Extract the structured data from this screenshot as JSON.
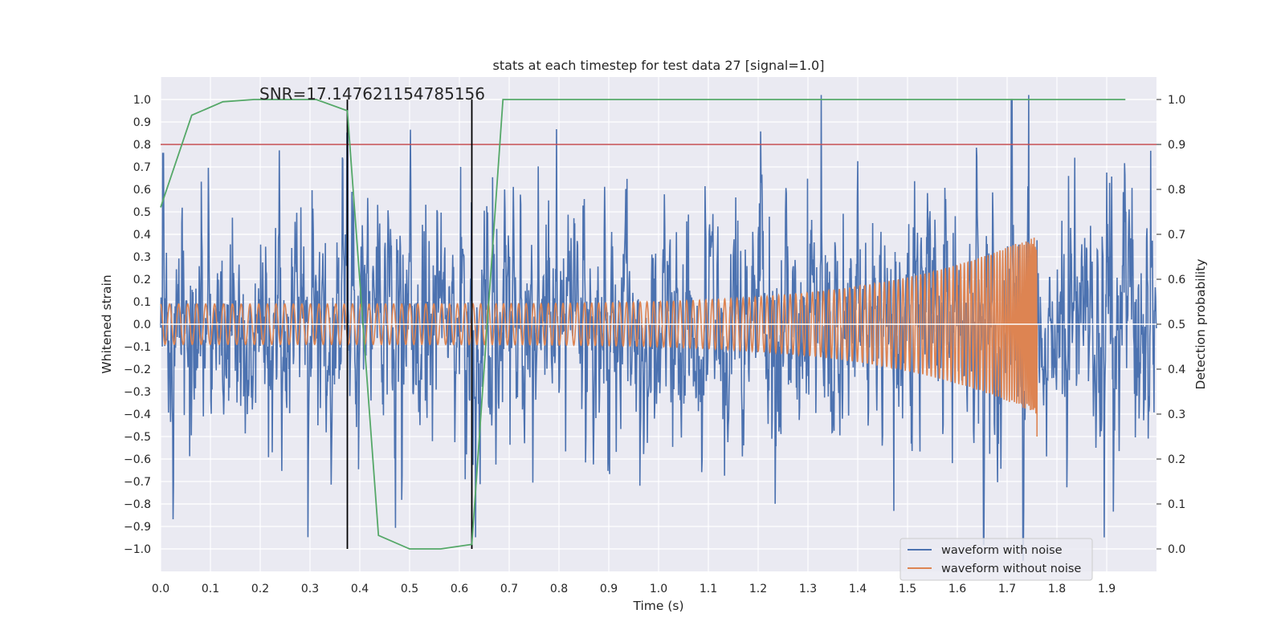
{
  "chart_data": {
    "type": "line",
    "title": "stats at each timestep for test data 27 [signal=1.0]",
    "annotation": "SNR=17.147621154785156",
    "xlabel": "Time (s)",
    "ylabel_left": "Whitened strain",
    "ylabel_right": "Detection probability",
    "xlim": [
      0.0,
      2.0
    ],
    "ylim_left": [
      -1.1,
      1.1
    ],
    "ylim_right": [
      -0.05,
      1.05
    ],
    "x_ticks": [
      "0.0",
      "0.1",
      "0.2",
      "0.3",
      "0.4",
      "0.5",
      "0.6",
      "0.7",
      "0.8",
      "0.9",
      "1.0",
      "1.1",
      "1.2",
      "1.3",
      "1.4",
      "1.5",
      "1.6",
      "1.7",
      "1.8",
      "1.9"
    ],
    "y_left_ticks": [
      "1.0",
      "0.9",
      "0.8",
      "0.7",
      "0.6",
      "0.5",
      "0.4",
      "0.3",
      "0.2",
      "0.1",
      "0.0",
      "−0.1",
      "−0.2",
      "−0.3",
      "−0.4",
      "−0.5",
      "−0.6",
      "−0.7",
      "−0.8",
      "−0.9",
      "−1.0"
    ],
    "y_right_ticks": [
      "1.0",
      "0.9",
      "0.8",
      "0.7",
      "0.6",
      "0.5",
      "0.4",
      "0.3",
      "0.2",
      "0.1",
      "0.0"
    ],
    "grid": true,
    "legend_position": "lower-right",
    "series": [
      {
        "name": "waveform with noise",
        "color": "#4c72b0",
        "axis": "left",
        "kind": "noisy strain, 0.0–2.0 s, roughly within ±0.65 with spikes up to 1.0 near 1.71 s and down to −1.05 near 1.73 s"
      },
      {
        "name": "waveform without noise",
        "color": "#dd8452",
        "axis": "left",
        "kind": "chirp",
        "start_amplitude": 0.09,
        "end_amplitude": 0.4,
        "start_time": 0.0,
        "end_time": 1.76
      }
    ],
    "detection_probability": {
      "color": "#55a868",
      "axis": "right",
      "x": [
        0.0,
        0.0625,
        0.125,
        0.1875,
        0.25,
        0.3125,
        0.375,
        0.4375,
        0.5,
        0.5625,
        0.625,
        0.6875,
        0.75,
        1.0,
        1.5,
        1.9375
      ],
      "y": [
        0.76,
        0.965,
        0.995,
        1.0,
        1.0,
        1.0,
        0.975,
        0.03,
        0.0,
        0.0,
        0.01,
        1.0,
        1.0,
        1.0,
        1.0,
        1.0
      ]
    },
    "threshold_line": {
      "value": 0.9,
      "axis": "right",
      "color": "#c44e52"
    },
    "vertical_markers": {
      "x": [
        0.375,
        0.625
      ],
      "y_range": [
        -1.0,
        1.0
      ],
      "color": "#000000"
    }
  }
}
